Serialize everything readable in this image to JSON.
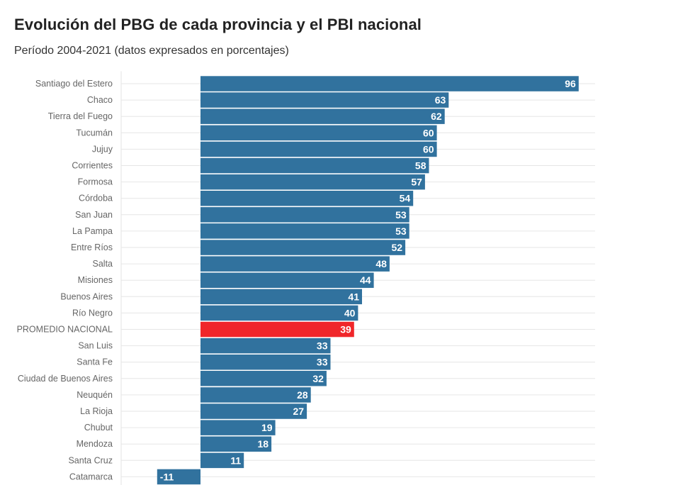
{
  "chart_data": {
    "type": "bar",
    "orientation": "horizontal",
    "title": "Evolución del PBG de cada provincia y el PBI nacional",
    "subtitle": "Período 2004-2021 (datos expresados en porcentajes)",
    "categories": [
      "Santiago del Estero",
      "Chaco",
      "Tierra del Fuego",
      "Tucumán",
      "Jujuy",
      "Corrientes",
      "Formosa",
      "Córdoba",
      "San Juan",
      "La Pampa",
      "Entre Ríos",
      "Salta",
      "Misiones",
      "Buenos Aires",
      "Río Negro",
      "PROMEDIO NACIONAL",
      "San Luis",
      "Santa Fe",
      "Ciudad de Buenos Aires",
      "Neuquén",
      "La Rioja",
      "Chubut",
      "Mendoza",
      "Santa Cruz",
      "Catamarca"
    ],
    "values": [
      96,
      63,
      62,
      60,
      60,
      58,
      57,
      54,
      53,
      53,
      52,
      48,
      44,
      41,
      40,
      39,
      33,
      33,
      32,
      28,
      27,
      19,
      18,
      11,
      -11
    ],
    "highlight": "PROMEDIO NACIONAL",
    "colors": {
      "bar": "#31729e",
      "highlight": "#f0262a"
    },
    "xlim": [
      -11,
      100
    ],
    "grid": true,
    "legend": "none"
  }
}
